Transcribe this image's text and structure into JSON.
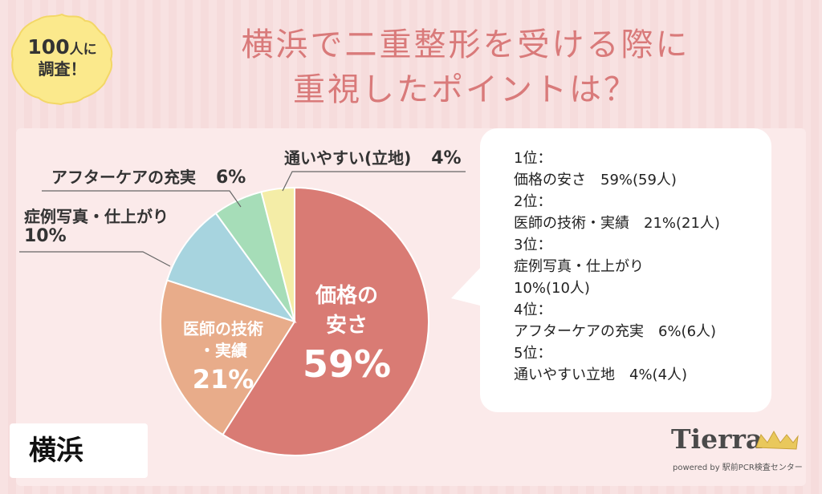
{
  "badge": {
    "line1_number": "100",
    "line1_suffix": "人に",
    "line2": "調査！"
  },
  "title": {
    "line1": "横浜で二重整形を受ける際に",
    "line2": "重視したポイントは？"
  },
  "chart_data": {
    "type": "pie",
    "title": "横浜で二重整形を受ける際に重視したポイントは？",
    "unit": "%",
    "slices": [
      {
        "label": "価格の安さ",
        "value": 59,
        "color": "#d97b74"
      },
      {
        "label": "医師の技術・実績",
        "value": 21,
        "color": "#e8ac8a"
      },
      {
        "label": "症例写真・仕上がり",
        "value": 10,
        "color": "#a7d4df"
      },
      {
        "label": "アフターケアの充実",
        "value": 6,
        "color": "#a6ddb8"
      },
      {
        "label": "通いやすい(立地)",
        "value": 4,
        "color": "#f4eda7"
      }
    ]
  },
  "inside_labels": {
    "s1": {
      "line1": "価格の",
      "line2": "安さ",
      "pct": "59%"
    },
    "s2": {
      "line1": "医師の技術",
      "line2": "・実績",
      "pct": "21%"
    }
  },
  "outside_labels": {
    "s3": {
      "text": "症例写真・仕上がり",
      "pct": "10%"
    },
    "s4": {
      "text": "アフターケアの充実",
      "pct": "6%"
    },
    "s5": {
      "text": "通いやすい(立地)",
      "pct": "4%"
    }
  },
  "ranking": [
    "1位：",
    "価格の安さ　59%(59人)",
    "2位：",
    "医師の技術・実績　21%(21人)",
    "3位：",
    "症例写真・仕上がり",
    "10%(10人)",
    "4位：",
    "アフターケアの充実　6%(6人)",
    "5位：",
    "通いやすい立地　4%(4人)"
  ],
  "city": "横浜",
  "logo": {
    "name": "Tierra",
    "sub": "powered by 駅前PCR検査センター"
  }
}
